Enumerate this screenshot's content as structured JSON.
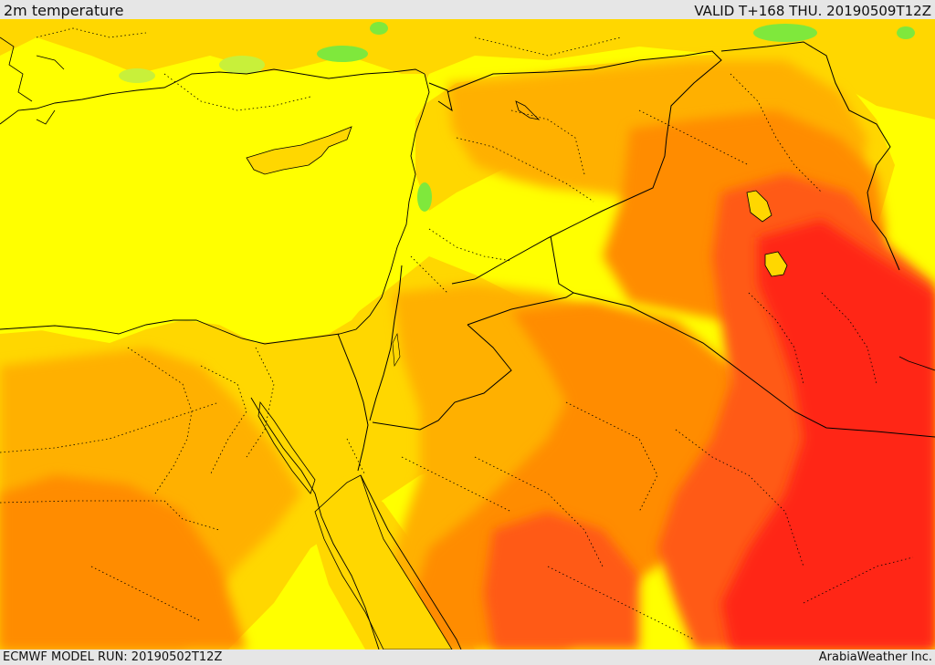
{
  "header": {
    "title": "2m temperature",
    "valid_label": "VALID T+168 THU. 20190509T12Z"
  },
  "footer": {
    "model_run": "ECMWF MODEL RUN: 20190502T12Z",
    "credit": "ArabiaWeather Inc."
  },
  "palette": {
    "green": "#7fe83c",
    "light_green": "#c8f03a",
    "yellow": "#ffff00",
    "gold": "#ffd700",
    "amber": "#ffb000",
    "orange": "#ff8c00",
    "dark_orange": "#ff5a14",
    "red": "#ff2814",
    "border": "#000000"
  }
}
